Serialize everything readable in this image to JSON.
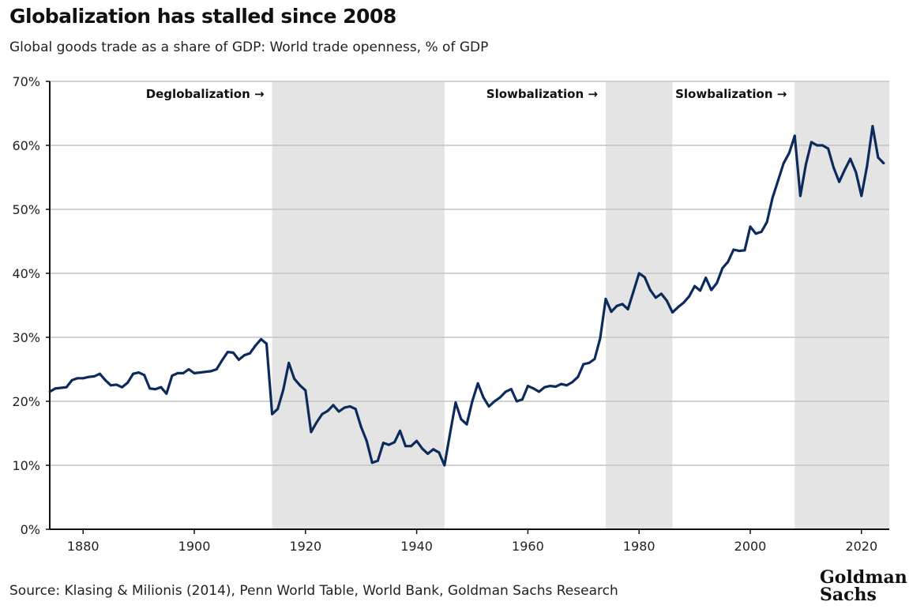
{
  "title": "Globalization has stalled since 2008",
  "subtitle": "Global goods trade as a share of GDP: World trade openness, % of GDP",
  "source": "Source: Klasing & Milionis (2014), Penn World Table, World Bank, Goldman Sachs Research",
  "logo": "Goldman Sachs",
  "chart_data": {
    "type": "line",
    "title": "Globalization has stalled since 2008",
    "xlabel": "",
    "ylabel": "",
    "xlim": [
      1874,
      2025
    ],
    "ylim": [
      0,
      70
    ],
    "grid": true,
    "line_color": "#0c2a5b",
    "shade_color": "#e4e4e4",
    "x_ticks": [
      1880,
      1900,
      1920,
      1940,
      1960,
      1980,
      2000,
      2020
    ],
    "x_tick_labels": [
      "1880",
      "1900",
      "1920",
      "1940",
      "1960",
      "1980",
      "2000",
      "2020"
    ],
    "y_ticks": [
      0,
      10,
      20,
      30,
      40,
      50,
      60,
      70
    ],
    "y_tick_labels": [
      "0%",
      "10%",
      "20%",
      "30%",
      "40%",
      "50%",
      "60%",
      "70%"
    ],
    "shaded_periods": [
      {
        "start": 1914,
        "end": 1945,
        "label": "Deglobalization →"
      },
      {
        "start": 1974,
        "end": 1986,
        "label": "Slowbalization →"
      },
      {
        "start": 2008,
        "end": 2025,
        "label": "Slowbalization →"
      }
    ],
    "series": [
      {
        "x": [
          1874,
          1875,
          1876,
          1877,
          1878,
          1879,
          1880,
          1881,
          1882,
          1883,
          1884,
          1885,
          1886,
          1887,
          1888,
          1889,
          1890,
          1891,
          1892,
          1893,
          1894,
          1895,
          1896,
          1897,
          1898,
          1899,
          1900,
          1901,
          1902,
          1903,
          1904,
          1905,
          1906,
          1907,
          1908,
          1909,
          1910,
          1911,
          1912,
          1913,
          1914,
          1915,
          1916,
          1917,
          1918,
          1919,
          1920,
          1921,
          1922,
          1923,
          1924,
          1925,
          1926,
          1927,
          1928,
          1929,
          1930,
          1931,
          1932,
          1933,
          1934,
          1935,
          1936,
          1937,
          1938,
          1939,
          1940,
          1941,
          1942,
          1943,
          1944,
          1945,
          1946,
          1947,
          1948,
          1949,
          1950,
          1951,
          1952,
          1953,
          1954,
          1955,
          1956,
          1957,
          1958,
          1959,
          1960,
          1961,
          1962,
          1963,
          1964,
          1965,
          1966,
          1967,
          1968,
          1969,
          1970,
          1971,
          1972,
          1973,
          1974,
          1975,
          1976,
          1977,
          1978,
          1979,
          1980,
          1981,
          1982,
          1983,
          1984,
          1985,
          1986,
          1987,
          1988,
          1989,
          1990,
          1991,
          1992,
          1993,
          1994,
          1995,
          1996,
          1997,
          1998,
          1999,
          2000,
          2001,
          2002,
          2003,
          2004,
          2005,
          2006,
          2007,
          2008,
          2009,
          2010,
          2011,
          2012,
          2013,
          2014,
          2015,
          2016,
          2017,
          2018,
          2019,
          2020,
          2021,
          2022,
          2023,
          2024
        ],
        "y": [
          21.5,
          22.0,
          22.1,
          22.2,
          23.3,
          23.6,
          23.6,
          23.8,
          23.9,
          24.3,
          23.3,
          22.5,
          22.6,
          22.2,
          22.9,
          24.3,
          24.5,
          24.1,
          22.0,
          21.9,
          22.2,
          21.2,
          24.0,
          24.4,
          24.4,
          25.0,
          24.4,
          24.5,
          24.6,
          24.7,
          25.0,
          26.4,
          27.7,
          27.6,
          26.5,
          27.2,
          27.5,
          28.7,
          29.7,
          29.0,
          18.0,
          18.8,
          21.8,
          26.0,
          23.5,
          22.5,
          21.7,
          15.2,
          16.7,
          18.0,
          18.5,
          19.4,
          18.4,
          19.0,
          19.2,
          18.8,
          16.0,
          13.8,
          10.4,
          10.7,
          13.5,
          13.2,
          13.6,
          15.4,
          13.0,
          13.0,
          13.8,
          12.6,
          11.8,
          12.5,
          12.0,
          10.0,
          15.0,
          19.8,
          17.2,
          16.4,
          20.0,
          22.8,
          20.6,
          19.2,
          20.0,
          20.6,
          21.5,
          21.9,
          20.0,
          20.3,
          22.4,
          22.0,
          21.5,
          22.2,
          22.4,
          22.3,
          22.7,
          22.5,
          23.0,
          23.8,
          25.8,
          26.0,
          26.6,
          29.8,
          36.0,
          34.0,
          34.9,
          35.2,
          34.4,
          37.2,
          40.0,
          39.4,
          37.4,
          36.2,
          36.8,
          35.7,
          33.9,
          34.7,
          35.4,
          36.4,
          38.0,
          37.3,
          39.3,
          37.4,
          38.5,
          40.8,
          41.8,
          43.7,
          43.5,
          43.6,
          47.3,
          46.2,
          46.5,
          48.0,
          51.8,
          54.5,
          57.2,
          58.8,
          61.5,
          52.1,
          57.0,
          60.5,
          60.0,
          60.0,
          59.5,
          56.5,
          54.3,
          56.2,
          57.9,
          55.8,
          52.1,
          56.7,
          63.0,
          58.1,
          57.2
        ]
      }
    ]
  }
}
